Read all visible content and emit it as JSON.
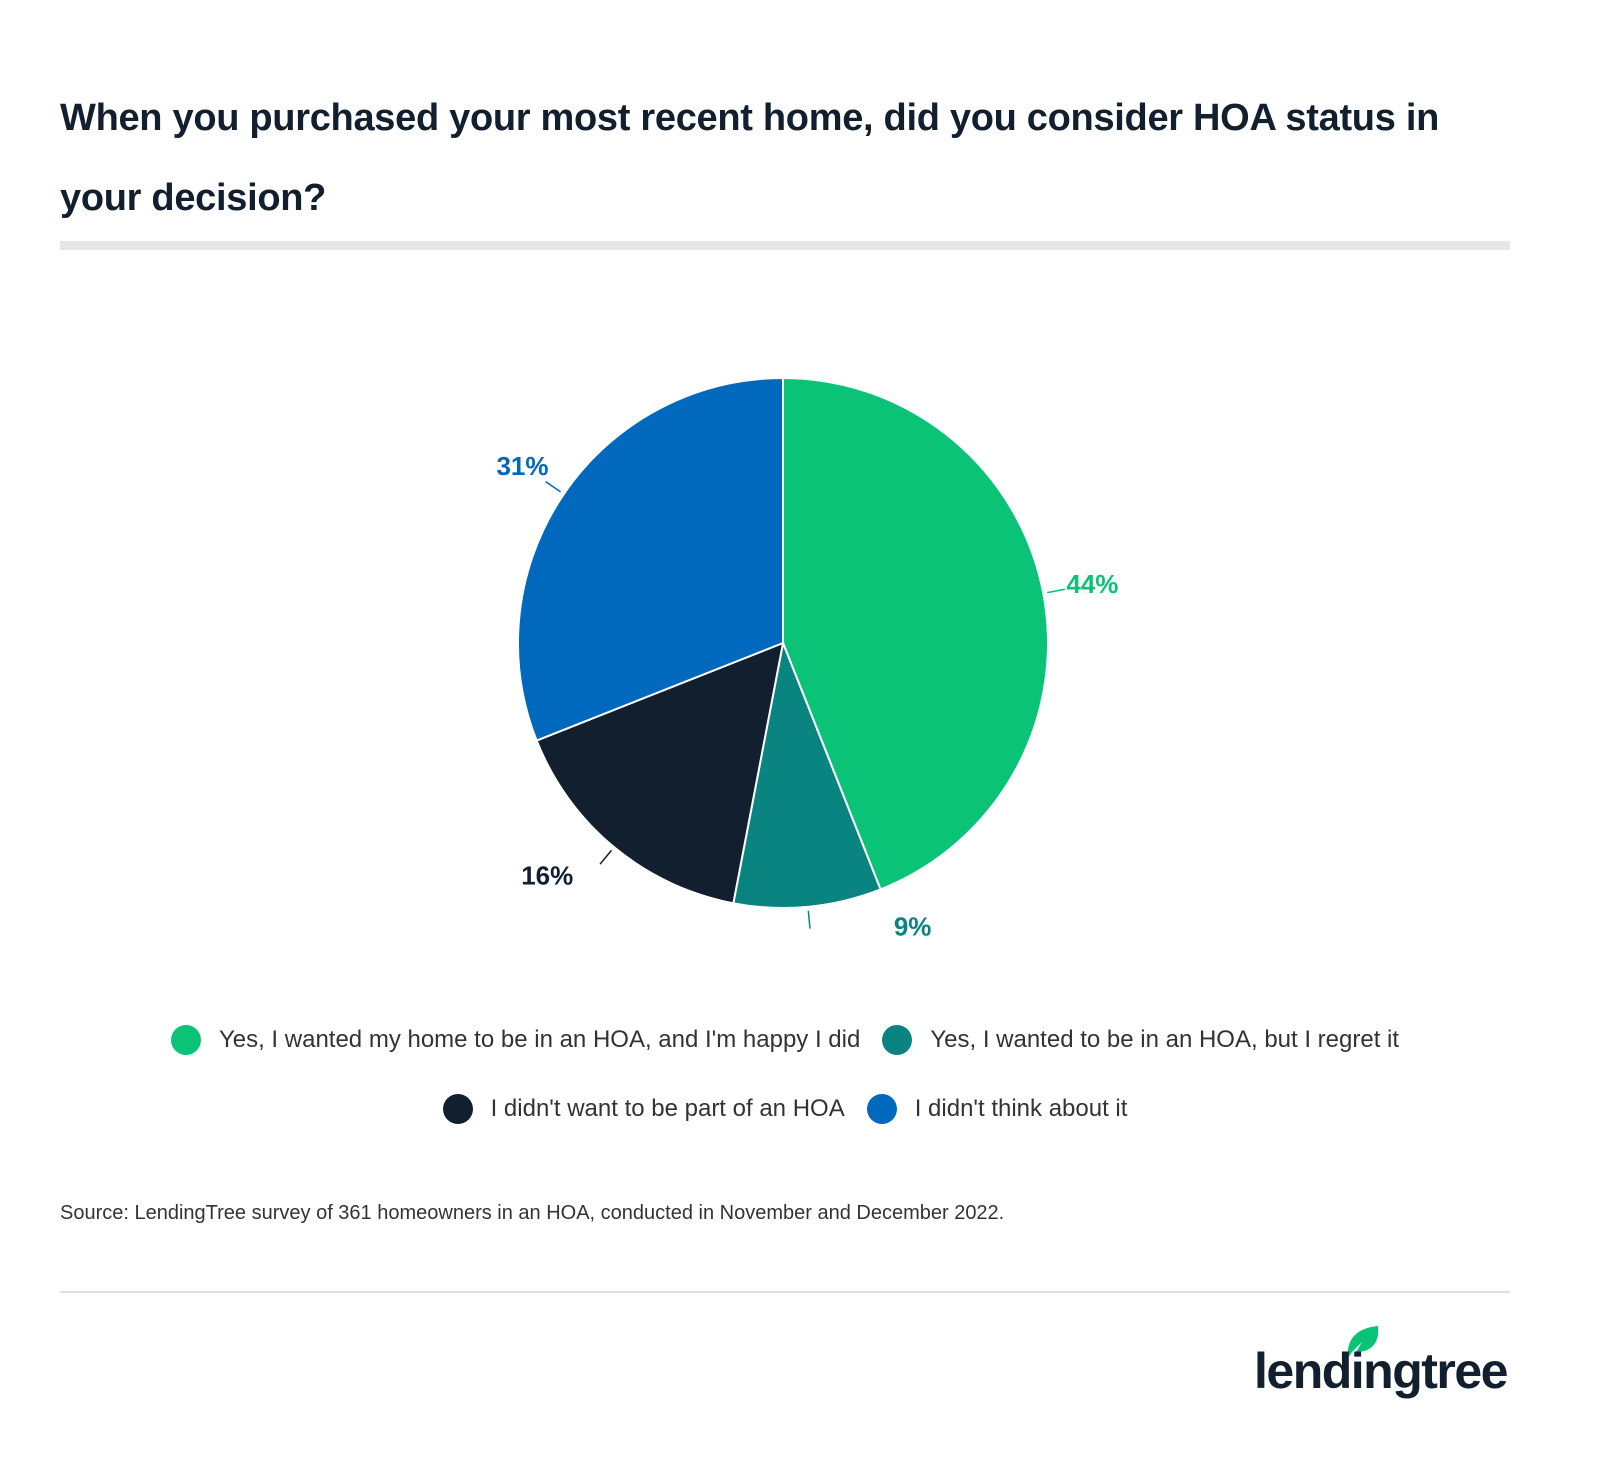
{
  "title": "When you purchased your most recent home, did you consider HOA status in your decision?",
  "chart_data": {
    "type": "pie",
    "title": "When you purchased your most recent home, did you consider HOA status in your decision?",
    "categories": [
      "Yes, I wanted my home to be in an HOA, and I'm happy I did",
      "Yes, I wanted to be in an HOA, but I regret it",
      "I didn't want to be part of an HOA",
      "I didn't think about it"
    ],
    "values": [
      44,
      9,
      16,
      31
    ],
    "labels": [
      "44%",
      "9%",
      "16%",
      "31%"
    ],
    "colors": [
      "#0bc377",
      "#0a8481",
      "#111f2f",
      "#0069bd"
    ],
    "legend_position": "bottom"
  },
  "source": "Source: LendingTree survey of 361 homeowners in an HOA, conducted in November and December 2022.",
  "logo": "lendingtree"
}
